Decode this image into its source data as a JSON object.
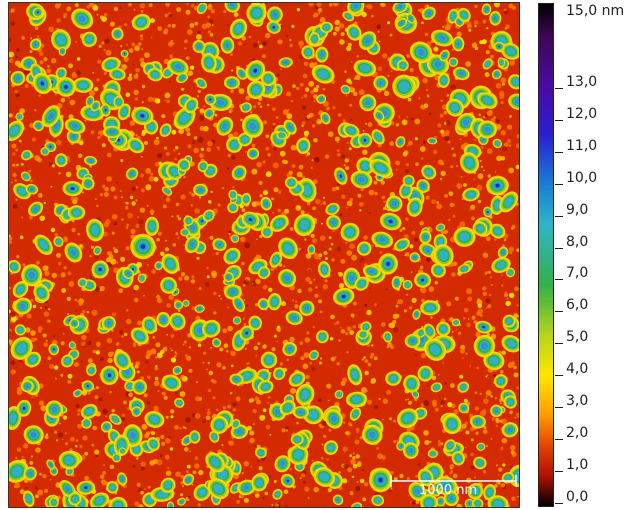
{
  "image": {
    "description_icon": "afm-topography-icon",
    "scale_bar_label": "1000 nm",
    "colors": {
      "background": "#d42a00",
      "grain_low": "#ffd400",
      "grain_mid": "#33b04a",
      "grain_high": "#2f8fd0",
      "grain_peak": "#1133a0"
    }
  },
  "colorbar": {
    "top_label": "15,0 nm",
    "labels": [
      "13,0",
      "12,0",
      "11,0",
      "10,0",
      "9,0",
      "8,0",
      "7,0",
      "6,0",
      "5,0",
      "4,0",
      "3,0",
      "2,0",
      "1,0",
      "0,0"
    ],
    "values": [
      13,
      12,
      11,
      10,
      9,
      8,
      7,
      6,
      5,
      4,
      3,
      2,
      1,
      0
    ],
    "max_value": 15,
    "min_value": 0,
    "unit": "nm"
  }
}
